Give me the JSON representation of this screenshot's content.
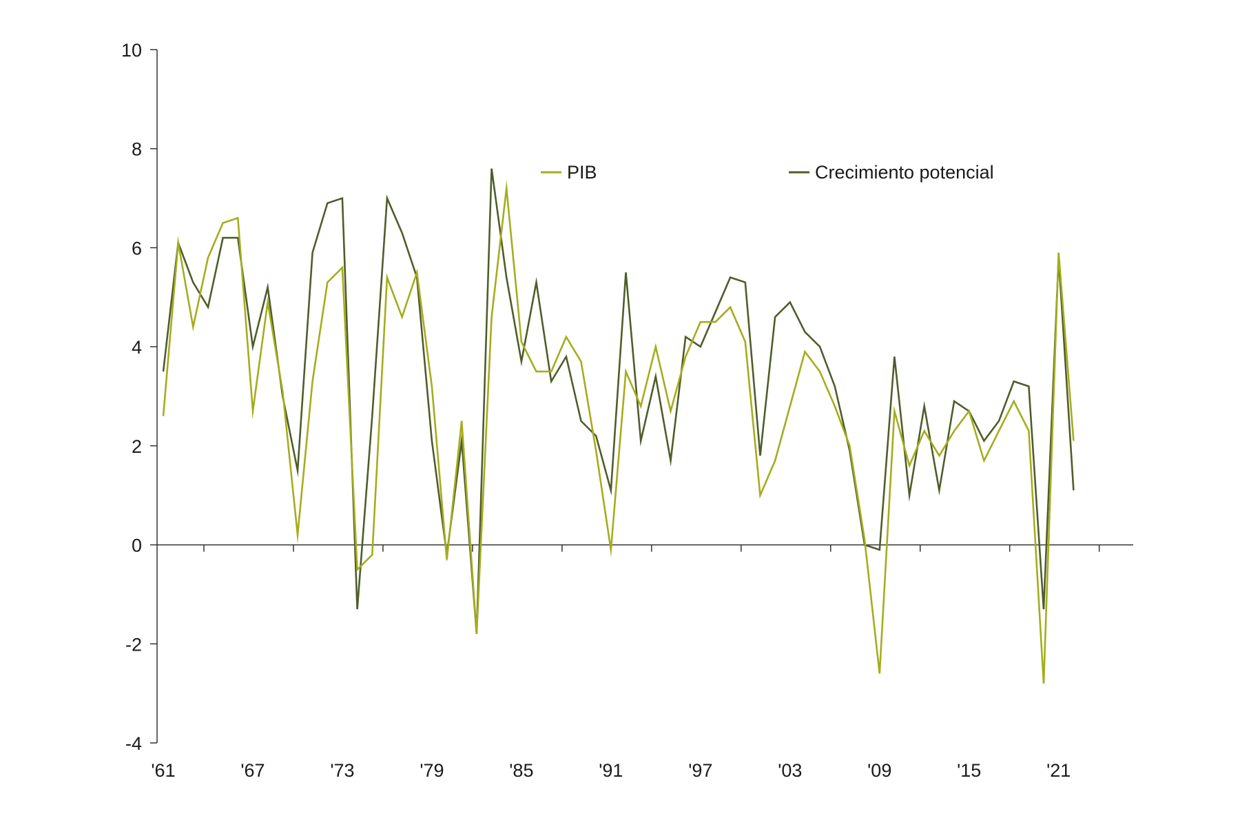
{
  "chart_data": {
    "type": "line",
    "title": "",
    "xlabel": "",
    "ylabel": "",
    "ylim": [
      -4,
      10
    ],
    "yticks": [
      -4,
      -2,
      0,
      2,
      4,
      6,
      8,
      10
    ],
    "xrange": [
      1961,
      2026
    ],
    "xtick_labels": [
      "'61",
      "'67",
      "'73",
      "'79",
      "'85",
      "'91",
      "'97",
      "'03",
      "'09",
      "'15",
      "'21"
    ],
    "xtick_years": [
      1961,
      1967,
      1973,
      1979,
      1985,
      1991,
      1997,
      2003,
      2009,
      2015,
      2021
    ],
    "grid": false,
    "legend_position": "top",
    "x": [
      1961,
      1962,
      1963,
      1964,
      1965,
      1966,
      1967,
      1968,
      1969,
      1970,
      1971,
      1972,
      1973,
      1974,
      1975,
      1976,
      1977,
      1978,
      1979,
      1980,
      1981,
      1982,
      1983,
      1984,
      1985,
      1986,
      1987,
      1988,
      1989,
      1990,
      1991,
      1992,
      1993,
      1994,
      1995,
      1996,
      1997,
      1998,
      1999,
      2000,
      2001,
      2002,
      2003,
      2004,
      2005,
      2006,
      2007,
      2008,
      2009,
      2010,
      2011,
      2012,
      2013,
      2014,
      2015,
      2016,
      2017,
      2018,
      2019,
      2020,
      2021,
      2022
    ],
    "series": [
      {
        "name": "PIB",
        "color": "#a4ad1c",
        "values": [
          2.6,
          6.1,
          4.4,
          5.8,
          6.5,
          6.6,
          2.7,
          4.9,
          3.1,
          0.2,
          3.3,
          5.3,
          5.6,
          -0.5,
          -0.2,
          5.4,
          4.6,
          5.5,
          3.2,
          -0.3,
          2.5,
          -1.8,
          4.6,
          7.2,
          4.1,
          3.5,
          3.5,
          4.2,
          3.7,
          1.9,
          -0.1,
          3.5,
          2.8,
          4.0,
          2.7,
          3.8,
          4.5,
          4.5,
          4.8,
          4.1,
          1.0,
          1.7,
          2.8,
          3.9,
          3.5,
          2.8,
          2.0,
          0.1,
          -2.6,
          2.7,
          1.6,
          2.3,
          1.8,
          2.3,
          2.7,
          1.7,
          2.3,
          2.9,
          2.3,
          -2.8,
          5.9,
          2.1
        ]
      },
      {
        "name": "Crecimiento potencial",
        "color": "#4f5d2a",
        "values": [
          3.5,
          6.1,
          5.3,
          4.8,
          6.2,
          6.2,
          4.0,
          5.2,
          3.0,
          1.5,
          5.9,
          6.9,
          7.0,
          -1.3,
          2.6,
          7.0,
          6.3,
          5.4,
          2.1,
          -0.2,
          2.1,
          -1.8,
          7.6,
          5.4,
          3.7,
          5.3,
          3.3,
          3.8,
          2.5,
          2.2,
          1.1,
          5.5,
          2.1,
          3.4,
          1.7,
          4.2,
          4.0,
          4.7,
          5.4,
          5.3,
          1.8,
          4.6,
          4.9,
          4.3,
          4.0,
          3.2,
          1.9,
          0.0,
          -0.1,
          3.8,
          1.0,
          2.8,
          1.1,
          2.9,
          2.7,
          2.1,
          2.5,
          3.3,
          3.2,
          -1.3,
          5.8,
          1.1
        ]
      }
    ]
  }
}
